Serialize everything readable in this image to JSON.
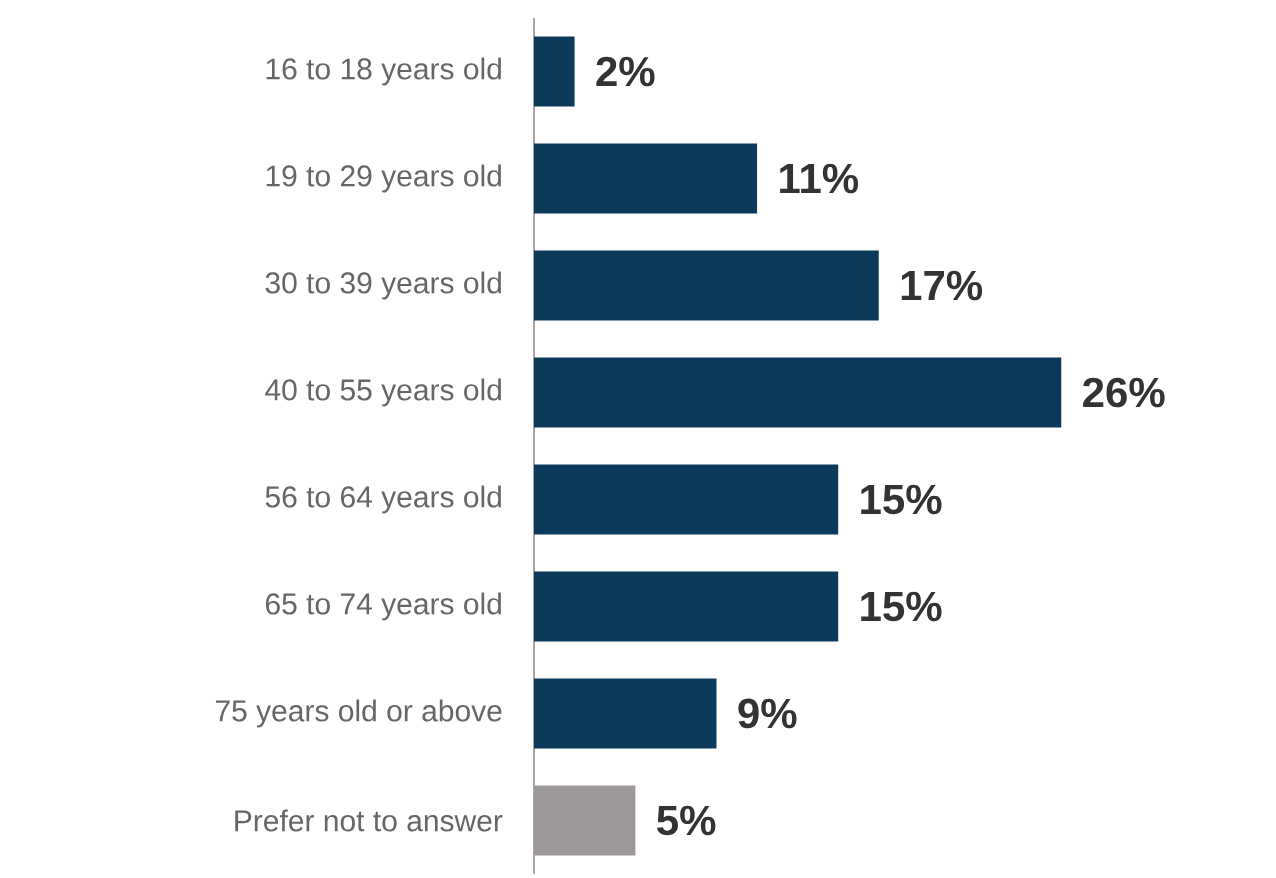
{
  "chart_data": {
    "type": "bar",
    "orientation": "horizontal",
    "categories": [
      "16 to 18 years old",
      "19 to 29 years old",
      "30 to 39  years old",
      "40 to 55 years old",
      "56 to 64 years old",
      "65 to 74 years old",
      "75 years old or above",
      "Prefer not to answer"
    ],
    "values": [
      2,
      11,
      17,
      26,
      15,
      15,
      9,
      5
    ],
    "value_labels": [
      "2%",
      "11%",
      "17%",
      "26%",
      "15%",
      "15%",
      "9%",
      "5%"
    ],
    "colors": [
      "#0b3a5a",
      "#0b3a5a",
      "#0b3a5a",
      "#0b3a5a",
      "#0b3a5a",
      "#0b3a5a",
      "#0b3a5a",
      "#9d999b"
    ]
  }
}
